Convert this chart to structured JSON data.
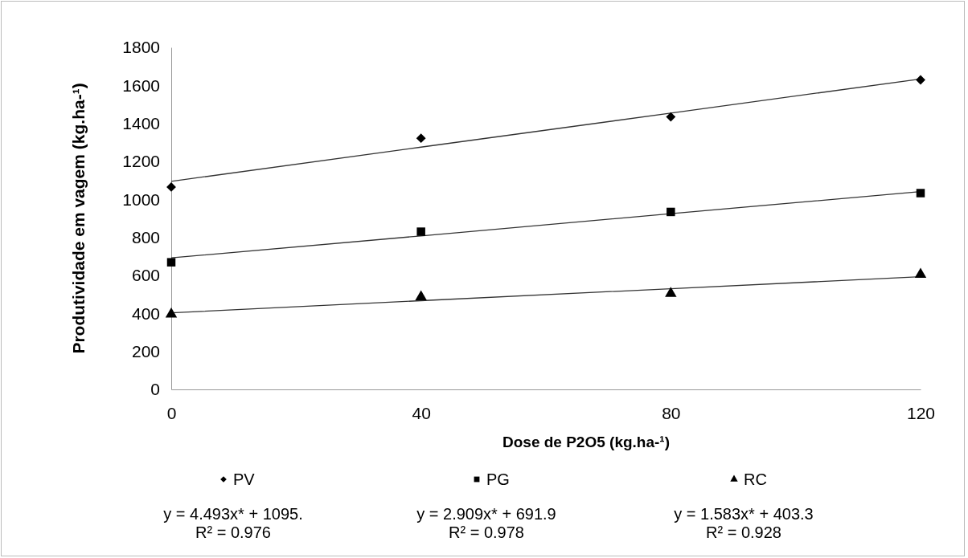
{
  "chart_data": {
    "type": "scatter",
    "xlabel": "Dose de P2O5 (kg.ha-¹)",
    "ylabel": "Produtividade em vagem (kg.ha-¹)",
    "x": [
      0,
      40,
      80,
      120
    ],
    "xlim": [
      0,
      120
    ],
    "xticks": [
      0,
      40,
      80,
      120
    ],
    "ylim": [
      0,
      1800
    ],
    "yticks": [
      0,
      200,
      400,
      600,
      800,
      1000,
      1200,
      1400,
      1600,
      1800
    ],
    "grid": false,
    "legend": "bottom",
    "series": [
      {
        "name": "PV",
        "color": "#000000",
        "marker": "diamond",
        "values": [
          1065,
          1322,
          1434,
          1629
        ]
      },
      {
        "name": "PG",
        "color": "#000000",
        "marker": "square",
        "values": [
          669,
          830,
          934,
          1033
        ]
      },
      {
        "name": "RC",
        "color": "#000000",
        "marker": "triangle",
        "values": [
          396,
          487,
          505,
          605
        ]
      },
      {
        "type": "line",
        "color": "#333333",
        "values": [
          1095,
          1275,
          1454,
          1634
        ]
      },
      {
        "type": "line",
        "color": "#333333",
        "values": [
          692,
          808,
          925,
          1041
        ]
      },
      {
        "type": "line",
        "color": "#333333",
        "values": [
          403,
          467,
          530,
          593
        ]
      }
    ],
    "annotations": [
      "y = 4.493x* + 1095.\nR² = 0.976",
      "y = 2.909x* + 691.9\nR² = 0.978",
      "y = 1.583x* + 403.3\nR² = 0.928"
    ]
  }
}
